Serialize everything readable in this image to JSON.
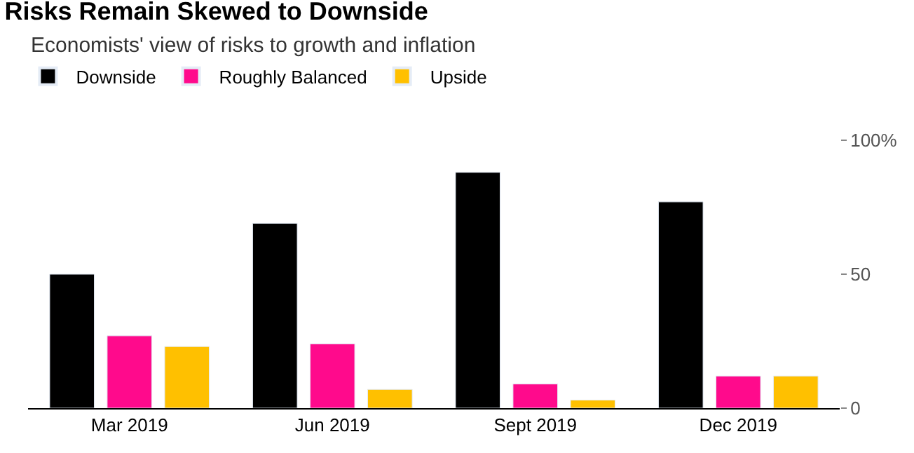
{
  "chart_data": {
    "type": "bar",
    "title": "Risks Remain Skewed to Downside",
    "subtitle": "Economists' view of risks to growth and inflation",
    "categories": [
      "Mar 2019",
      "Jun 2019",
      "Sept 2019",
      "Dec 2019"
    ],
    "series": [
      {
        "name": "Downside",
        "color": "#000000",
        "values": [
          50,
          69,
          88,
          77
        ]
      },
      {
        "name": "Roughly Balanced",
        "color": "#ff0a8c",
        "values": [
          27,
          24,
          9,
          12
        ]
      },
      {
        "name": "Upside",
        "color": "#ffc000",
        "values": [
          23,
          7,
          3,
          12
        ]
      }
    ],
    "ylim": [
      0,
      100
    ],
    "yticks": [
      0,
      50,
      {
        "value": 100,
        "label": "100%"
      }
    ],
    "legend": "top left",
    "grid": false
  }
}
